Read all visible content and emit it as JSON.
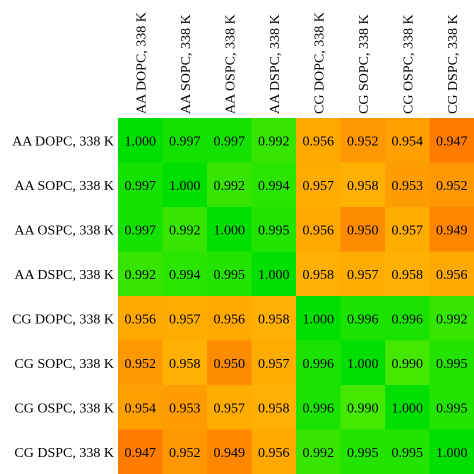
{
  "chart_data": {
    "type": "heatmap",
    "title": "",
    "xlabel": "",
    "ylabel": "",
    "rows": [
      "AA DOPC, 338 K",
      "AA SOPC, 338 K",
      "AA OSPC, 338 K",
      "AA DSPC, 338 K",
      "CG DOPC, 338 K",
      "CG SOPC, 338 K",
      "CG OSPC, 338 K",
      "CG DSPC, 338 K"
    ],
    "columns": [
      "AA DOPC, 338 K",
      "AA SOPC, 338 K",
      "AA OSPC, 338 K",
      "AA DSPC, 338 K",
      "CG DOPC, 338 K",
      "CG SOPC, 338 K",
      "CG OSPC, 338 K",
      "CG DSPC, 338 K"
    ],
    "values": [
      [
        "1.000",
        "0.997",
        "0.997",
        "0.992",
        "0.956",
        "0.952",
        "0.954",
        "0.947"
      ],
      [
        "0.997",
        "1.000",
        "0.992",
        "0.994",
        "0.957",
        "0.958",
        "0.953",
        "0.952"
      ],
      [
        "0.997",
        "0.992",
        "1.000",
        "0.995",
        "0.956",
        "0.950",
        "0.957",
        "0.949"
      ],
      [
        "0.992",
        "0.994",
        "0.995",
        "1.000",
        "0.958",
        "0.957",
        "0.958",
        "0.956"
      ],
      [
        "0.956",
        "0.957",
        "0.956",
        "0.958",
        "1.000",
        "0.996",
        "0.996",
        "0.992"
      ],
      [
        "0.952",
        "0.958",
        "0.950",
        "0.957",
        "0.996",
        "1.000",
        "0.990",
        "0.995"
      ],
      [
        "0.954",
        "0.953",
        "0.957",
        "0.958",
        "0.996",
        "0.990",
        "1.000",
        "0.995"
      ],
      [
        "0.947",
        "0.952",
        "0.949",
        "0.956",
        "0.992",
        "0.995",
        "0.995",
        "1.000"
      ]
    ],
    "colors": {
      "high_green": "#00e000",
      "mid_green": "#44e800",
      "low_orange": "#ffb000",
      "mid_orange": "#ff9a00",
      "deep_orange": "#ff7c00"
    },
    "legend": "none",
    "grid": false
  }
}
